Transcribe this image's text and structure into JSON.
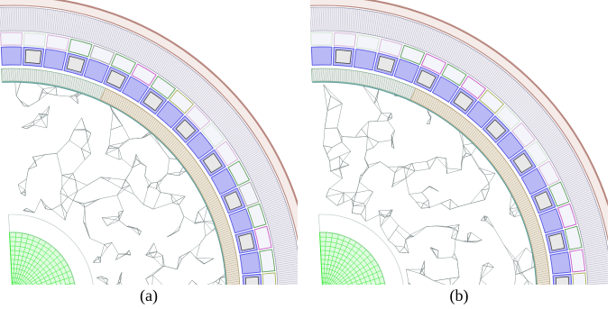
{
  "figure": {
    "panels": [
      {
        "id": "a",
        "caption": "(a)"
      },
      {
        "id": "b",
        "caption": "(b)"
      }
    ]
  },
  "colors": {
    "background": "#ffffff",
    "coarse_mesh": "#7f8a8a",
    "outer_frame": "#b8877f",
    "outer_frame_band": "#c9a9a2",
    "stator_mesh": "#8e8fa8",
    "winding_blue": "#5a5ae8",
    "winding_blue_fill": "#b9b9f5",
    "winding_green": "#5aa05a",
    "winding_magenta": "#c85ac8",
    "winding_olive": "#a8b25a",
    "slot_dark": "#3a3a3a",
    "inner_green_band": "#8fb89a",
    "tan_band": "#c2aa7e",
    "shaft_green": "#34e834",
    "teal_rim": "#5f9f9f"
  }
}
